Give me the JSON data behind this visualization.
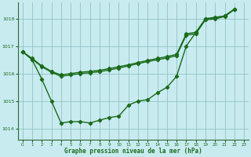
{
  "title": "Graphe pression niveau de la mer (hPa)",
  "background_color": "#c8ebf0",
  "plot_bg_color": "#c8ebf0",
  "grid_color": "#88bbbb",
  "line_color": "#1a6b1a",
  "xlim": [
    -0.5,
    23.5
  ],
  "ylim": [
    1013.6,
    1018.6
  ],
  "yticks": [
    1014,
    1015,
    1016,
    1017,
    1018
  ],
  "xticks": [
    0,
    1,
    2,
    3,
    4,
    5,
    6,
    7,
    8,
    9,
    10,
    11,
    12,
    13,
    14,
    15,
    16,
    17,
    18,
    19,
    20,
    21,
    22,
    23
  ],
  "s1_x": [
    0,
    1,
    2,
    3,
    4,
    5,
    6,
    7,
    8,
    9,
    10,
    11,
    12,
    13,
    14,
    15,
    16,
    17,
    18,
    19,
    20,
    21,
    22
  ],
  "s1_y": [
    1016.8,
    1016.5,
    1015.8,
    1015.0,
    1014.2,
    1014.25,
    1014.25,
    1014.2,
    1014.3,
    1014.4,
    1014.45,
    1014.85,
    1015.0,
    1015.05,
    1015.3,
    1015.5,
    1015.9,
    1017.0,
    1017.5,
    1018.0,
    1018.05,
    1018.1,
    1018.35
  ],
  "s2_x": [
    0,
    1,
    2,
    3,
    4,
    5,
    6,
    7,
    8,
    9,
    10,
    11,
    12,
    13,
    14,
    15,
    16,
    17,
    18,
    19,
    20,
    21,
    22
  ],
  "s2_y": [
    1016.8,
    1016.55,
    1016.28,
    1016.08,
    1015.95,
    1016.0,
    1016.05,
    1016.08,
    1016.12,
    1016.18,
    1016.25,
    1016.32,
    1016.4,
    1016.48,
    1016.55,
    1016.62,
    1016.7,
    1017.45,
    1017.5,
    1017.98,
    1018.02,
    1018.1,
    1018.35
  ],
  "s3_x": [
    0,
    1,
    2,
    3,
    4,
    5,
    6,
    7,
    8,
    9,
    10,
    11,
    12,
    13,
    14,
    15,
    16,
    17,
    18,
    19,
    20,
    21,
    22
  ],
  "s3_y": [
    1016.8,
    1016.52,
    1016.25,
    1016.05,
    1015.9,
    1015.95,
    1016.0,
    1016.03,
    1016.07,
    1016.13,
    1016.2,
    1016.28,
    1016.36,
    1016.44,
    1016.5,
    1016.57,
    1016.65,
    1017.4,
    1017.45,
    1017.96,
    1017.99,
    1018.08,
    1018.33
  ]
}
